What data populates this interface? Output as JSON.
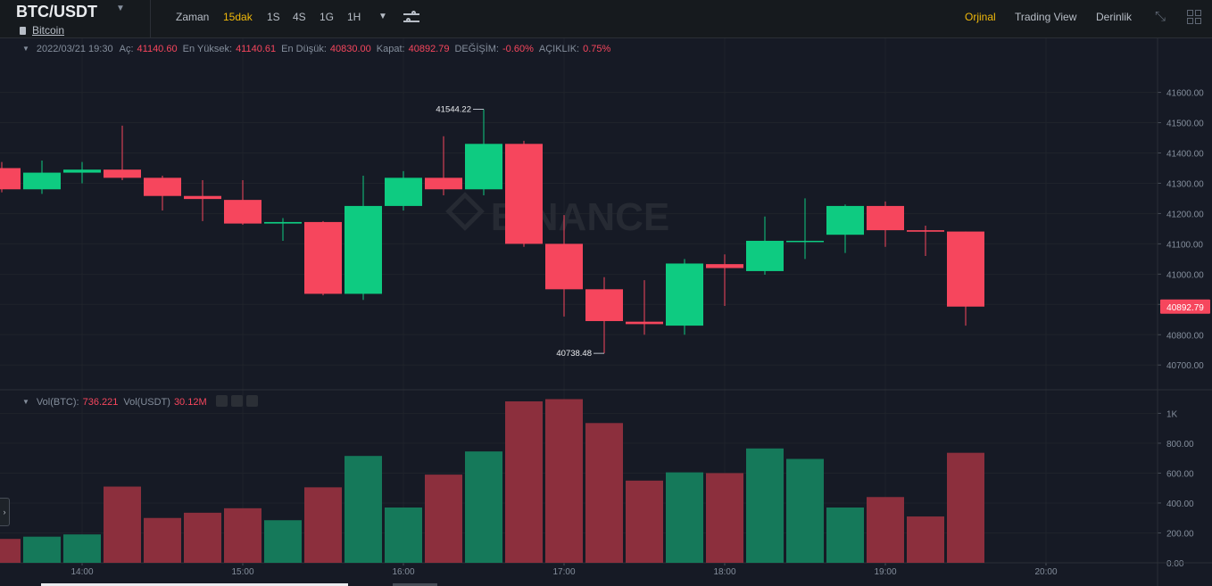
{
  "header": {
    "symbol": "BTC/USDT",
    "symbol_name": "Bitcoin",
    "time_label": "Zaman",
    "intervals": [
      "15dak",
      "1S",
      "4S",
      "1G",
      "1H"
    ],
    "active_interval": "15dak",
    "views": [
      "Orjinal",
      "Trading View",
      "Derinlik"
    ],
    "active_view": "Orjinal"
  },
  "legend": {
    "datetime": "2022/03/21 19:30",
    "open_label": "Aç:",
    "open": "41140.60",
    "high_label": "En Yüksek:",
    "high": "41140.61",
    "low_label": "En Düşük:",
    "low": "40830.00",
    "close_label": "Kapat:",
    "close": "40892.79",
    "change_label": "DEĞİŞİM:",
    "change": "-0.60%",
    "amplitude_label": "AÇIKLIK:",
    "amplitude": "0.75%"
  },
  "vol_legend": {
    "btc_label": "Vol(BTC):",
    "btc": "736.221",
    "usdt_label": "Vol(USDT)",
    "usdt": "30.12M"
  },
  "watermark": "BINANCE",
  "colors": {
    "up": "#0ecb81",
    "down": "#f6465d",
    "vol_up": "#15795a",
    "vol_down": "#8c2f3d",
    "accent": "#f0b90b"
  },
  "chart_data": {
    "type": "candlestick",
    "interval": "15m",
    "price_axis": {
      "min": 40630,
      "max": 41690,
      "ticks": [
        "41600.00",
        "41500.00",
        "41400.00",
        "41300.00",
        "41200.00",
        "41100.00",
        "41000.00",
        "40900.00",
        "40800.00",
        "40700.00"
      ]
    },
    "volume_axis": {
      "ticks": [
        "1K",
        "800.00",
        "600.00",
        "400.00",
        "200.00",
        "0.00"
      ]
    },
    "time_ticks": [
      "14:00",
      "15:00",
      "16:00",
      "17:00",
      "18:00",
      "19:00",
      "20:00"
    ],
    "last_price": "40892.79",
    "max_marker": "41544.22",
    "min_marker": "40738.48",
    "candles": [
      {
        "o": 41350,
        "h": 41370,
        "l": 41270,
        "c": 41280,
        "v": 160
      },
      {
        "o": 41280,
        "h": 41375,
        "l": 41265,
        "c": 41335,
        "v": 175
      },
      {
        "o": 41335,
        "h": 41370,
        "l": 41300,
        "c": 41345,
        "v": 190
      },
      {
        "o": 41345,
        "h": 41490,
        "l": 41310,
        "c": 41318,
        "v": 510
      },
      {
        "o": 41318,
        "h": 41325,
        "l": 41210,
        "c": 41258,
        "v": 300
      },
      {
        "o": 41258,
        "h": 41310,
        "l": 41175,
        "c": 41248,
        "v": 335
      },
      {
        "o": 41245,
        "h": 41310,
        "l": 41163,
        "c": 41167,
        "v": 365
      },
      {
        "o": 41167,
        "h": 41185,
        "l": 41110,
        "c": 41172,
        "v": 285
      },
      {
        "o": 41172,
        "h": 41175,
        "l": 40930,
        "c": 40935,
        "v": 505
      },
      {
        "o": 40935,
        "h": 41325,
        "l": 40915,
        "c": 41225,
        "v": 715
      },
      {
        "o": 41225,
        "h": 41340,
        "l": 41210,
        "c": 41318,
        "v": 370
      },
      {
        "o": 41318,
        "h": 41455,
        "l": 41260,
        "c": 41280,
        "v": 590
      },
      {
        "o": 41280,
        "h": 41544.22,
        "l": 41260,
        "c": 41430,
        "v": 745
      },
      {
        "o": 41430,
        "h": 41440,
        "l": 41090,
        "c": 41100,
        "v": 1080
      },
      {
        "o": 41100,
        "h": 41195,
        "l": 40860,
        "c": 40950,
        "v": 1095
      },
      {
        "o": 40950,
        "h": 40990,
        "l": 40738.48,
        "c": 40845,
        "v": 935
      },
      {
        "o": 40843,
        "h": 40980,
        "l": 40800,
        "c": 40835,
        "v": 550
      },
      {
        "o": 40830,
        "h": 41050,
        "l": 40800,
        "c": 41035,
        "v": 605
      },
      {
        "o": 41033,
        "h": 41065,
        "l": 40895,
        "c": 41020,
        "v": 600
      },
      {
        "o": 41010,
        "h": 41190,
        "l": 40998,
        "c": 41110,
        "v": 765
      },
      {
        "o": 41110,
        "h": 41250,
        "l": 41050,
        "c": 41110,
        "v": 695
      },
      {
        "o": 41130,
        "h": 41230,
        "l": 41070,
        "c": 41225,
        "v": 370
      },
      {
        "o": 41225,
        "h": 41240,
        "l": 41090,
        "c": 41145,
        "v": 440
      },
      {
        "o": 41145,
        "h": 41160,
        "l": 41060,
        "c": 41140,
        "v": 310
      },
      {
        "o": 41140.6,
        "h": 41140.61,
        "l": 40830.0,
        "c": 40892.79,
        "v": 736
      }
    ]
  }
}
